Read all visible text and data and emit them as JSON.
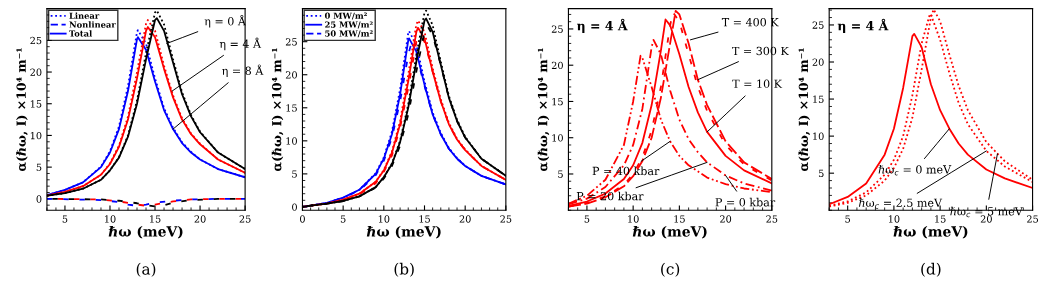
{
  "chart_data": [
    {
      "type": "line",
      "title": "(a)",
      "xlabel": "ℏω (meV)",
      "ylabel": "α(ℏω, I) ×10⁴ m⁻¹",
      "xlim": [
        3,
        25
      ],
      "ylim": [
        -1.8,
        30
      ],
      "xticks": [
        5,
        10,
        15,
        20,
        25
      ],
      "yticks": [
        0,
        5,
        10,
        15,
        20,
        25
      ],
      "grid": false,
      "legend": "top left",
      "series": [
        {
          "name": "Linear",
          "color": "#0000ff",
          "line_style": "dotted",
          "x": [
            3,
            5,
            7,
            9,
            10,
            11,
            12,
            13,
            13.1,
            14,
            15,
            16,
            17,
            18,
            19,
            20,
            22,
            25
          ],
          "values": [
            0.6,
            1.4,
            2.6,
            5.1,
            7.5,
            11.4,
            17.8,
            26.3,
            26.6,
            24.5,
            19,
            14.3,
            11.2,
            8.9,
            7.4,
            6.2,
            4.7,
            3.4
          ]
        },
        {
          "name": "Nonlinear",
          "color": "#0000ff",
          "line_style": "dashed",
          "x": [
            3,
            9,
            11,
            12,
            13,
            14,
            15,
            17,
            19,
            22,
            25
          ],
          "values": [
            0,
            -0.2,
            -0.5,
            -0.9,
            -1.1,
            -0.9,
            -0.6,
            -0.3,
            -0.1,
            0,
            0
          ]
        },
        {
          "name": "Total",
          "color": "#0000ff",
          "line_style": "solid",
          "x": [
            3,
            5,
            7,
            9,
            10,
            11,
            12,
            13,
            13.1,
            14,
            15,
            16,
            17,
            18,
            19,
            20,
            22,
            25
          ],
          "values": [
            0.6,
            1.4,
            2.6,
            5,
            7.3,
            11,
            17,
            25.2,
            25.5,
            23.5,
            18.5,
            14,
            11,
            8.8,
            7.3,
            6.2,
            4.7,
            3.4
          ]
        },
        {
          "color": "#ff0000",
          "line_style": "dotted",
          "x": [
            3,
            5,
            7,
            9,
            10,
            11,
            12,
            13,
            14,
            14.2,
            15,
            16,
            17,
            18,
            19,
            20,
            22,
            25
          ],
          "values": [
            0.5,
            1.1,
            2,
            3.8,
            5.6,
            8.4,
            13,
            20,
            27.6,
            28.2,
            26.5,
            21,
            16.3,
            12.7,
            10.3,
            8.7,
            6.2,
            4.1
          ]
        },
        {
          "color": "#ff0000",
          "line_style": "dashed",
          "x": [
            3,
            9,
            11,
            13,
            14,
            15,
            17,
            19,
            22,
            25
          ],
          "values": [
            0,
            -0.1,
            -0.4,
            -0.9,
            -1.1,
            -0.9,
            -0.4,
            -0.1,
            0,
            0
          ]
        },
        {
          "color": "#ff0000",
          "line_style": "solid",
          "x": [
            3,
            5,
            7,
            9,
            10,
            11,
            12,
            13,
            14,
            14.2,
            15,
            16,
            17,
            18,
            19,
            20,
            22,
            25
          ],
          "values": [
            0.5,
            1.1,
            2,
            3.8,
            5.5,
            8.2,
            12.5,
            19,
            26.5,
            27.1,
            25.5,
            20.5,
            16,
            12.5,
            10.2,
            8.6,
            6.2,
            4.1
          ]
        },
        {
          "color": "#000000",
          "line_style": "dotted",
          "x": [
            3,
            5,
            7,
            9,
            10,
            11,
            12,
            13,
            14,
            15,
            15.2,
            16,
            17,
            18,
            19,
            20,
            22,
            25
          ],
          "values": [
            0.5,
            0.9,
            1.6,
            3,
            4.5,
            6.6,
            10,
            15.5,
            23,
            29.4,
            29.7,
            27.5,
            22,
            16.8,
            13.2,
            10.6,
            7.3,
            4.7
          ]
        },
        {
          "color": "#000000",
          "line_style": "dashed",
          "x": [
            3,
            9,
            11,
            13,
            14,
            15,
            16,
            17,
            19,
            22,
            25
          ],
          "values": [
            0,
            -0.1,
            -0.3,
            -0.7,
            -1,
            -1.2,
            -1,
            -0.6,
            -0.2,
            0,
            0
          ]
        },
        {
          "color": "#000000",
          "line_style": "solid",
          "x": [
            3,
            5,
            7,
            9,
            10,
            11,
            12,
            13,
            14,
            15,
            15.2,
            16,
            17,
            18,
            19,
            20,
            22,
            25
          ],
          "values": [
            0.5,
            0.9,
            1.6,
            3,
            4.5,
            6.5,
            9.8,
            15,
            22,
            28.2,
            28.5,
            26.5,
            21.5,
            16.5,
            13,
            10.5,
            7.3,
            4.7
          ]
        }
      ],
      "annotations": [
        {
          "text": "η = 0 Å",
          "x": 16.3,
          "y": 24.5
        },
        {
          "text": "η = 4 Å",
          "x": 16.9,
          "y": 17
        },
        {
          "text": "η = 8 Å",
          "x": 17,
          "y": 11
        }
      ]
    },
    {
      "type": "line",
      "title": "(b)",
      "xlabel": "ℏω (meV)",
      "ylabel": "α(ℏω, I) ×10⁴ m⁻¹",
      "xlim": [
        0,
        25
      ],
      "ylim": [
        -0.5,
        30
      ],
      "xticks": [
        0,
        5,
        10,
        15,
        20,
        25
      ],
      "yticks": [
        0,
        5,
        10,
        15,
        20,
        25
      ],
      "grid": false,
      "legend": "top left",
      "series": [
        {
          "name": "0 MW/m²",
          "color": "#0000ff",
          "line_style": "dotted",
          "x": [
            0,
            1,
            3,
            5,
            7,
            9,
            10,
            11,
            12,
            13,
            13.1,
            14,
            15,
            16,
            17,
            18,
            19,
            20,
            22,
            25
          ],
          "values": [
            0,
            0.2,
            0.6,
            1.4,
            2.6,
            5.1,
            7.5,
            11.4,
            17.8,
            26.3,
            26.6,
            24.5,
            19,
            14.3,
            11.2,
            8.9,
            7.4,
            6.2,
            4.7,
            3.4
          ]
        },
        {
          "name": "25 MW/m²",
          "color": "#0000ff",
          "line_style": "solid",
          "x": [
            0,
            1,
            3,
            5,
            7,
            9,
            10,
            11,
            12,
            13,
            13.1,
            14,
            15,
            16,
            17,
            18,
            19,
            20,
            22,
            25
          ],
          "values": [
            0,
            0.2,
            0.6,
            1.4,
            2.6,
            5,
            7.3,
            11,
            17,
            25.2,
            25.5,
            23.5,
            18.5,
            14,
            11,
            8.8,
            7.3,
            6.2,
            4.7,
            3.4
          ]
        },
        {
          "name": "50 MW/m²",
          "color": "#0000ff",
          "line_style": "dashed",
          "x": [
            0,
            1,
            3,
            5,
            7,
            9,
            10,
            11,
            12,
            13,
            13.3,
            14,
            15,
            16,
            17,
            18,
            19,
            20,
            22,
            25
          ],
          "values": [
            0,
            0.2,
            0.6,
            1.4,
            2.5,
            4.8,
            7,
            10.5,
            16,
            23,
            24.4,
            23,
            18.3,
            14,
            11,
            8.8,
            7.3,
            6.2,
            4.7,
            3.4
          ]
        },
        {
          "color": "#ff0000",
          "line_style": "dotted",
          "x": [
            0,
            1,
            3,
            5,
            7,
            9,
            10,
            11,
            12,
            13,
            14,
            14.2,
            15,
            16,
            17,
            18,
            19,
            20,
            22,
            25
          ],
          "values": [
            0,
            0.2,
            0.5,
            1.1,
            2,
            3.8,
            5.6,
            8.4,
            13,
            20,
            27.6,
            28.2,
            26.5,
            21,
            16.3,
            12.7,
            10.3,
            8.7,
            6.2,
            4.1
          ]
        },
        {
          "color": "#ff0000",
          "line_style": "solid",
          "x": [
            0,
            1,
            3,
            5,
            7,
            9,
            10,
            11,
            12,
            13,
            14,
            14.2,
            15,
            16,
            17,
            18,
            19,
            20,
            22,
            25
          ],
          "values": [
            0,
            0.2,
            0.5,
            1.1,
            2,
            3.8,
            5.5,
            8.2,
            12.5,
            19,
            26.5,
            27.1,
            25.5,
            20.5,
            16,
            12.5,
            10.2,
            8.6,
            6.2,
            4.1
          ]
        },
        {
          "color": "#ff0000",
          "line_style": "dashed",
          "x": [
            0,
            1,
            3,
            5,
            7,
            9,
            10,
            11,
            12,
            13,
            14,
            14.4,
            15,
            16,
            17,
            18,
            19,
            20,
            22,
            25
          ],
          "values": [
            0,
            0.2,
            0.5,
            1.1,
            1.9,
            3.6,
            5.3,
            7.8,
            12,
            18,
            25,
            26,
            25,
            20.5,
            16,
            12.5,
            10.2,
            8.6,
            6.2,
            4.1
          ]
        },
        {
          "color": "#000000",
          "line_style": "dotted",
          "x": [
            0,
            1,
            3,
            5,
            7,
            9,
            10,
            11,
            12,
            13,
            14,
            15,
            15.2,
            16,
            17,
            18,
            19,
            20,
            22,
            25
          ],
          "values": [
            0,
            0.2,
            0.5,
            0.9,
            1.6,
            3,
            4.5,
            6.6,
            10,
            15.5,
            23,
            29.4,
            29.7,
            27.5,
            22,
            16.8,
            13.2,
            10.6,
            7.3,
            4.7
          ]
        },
        {
          "color": "#000000",
          "line_style": "solid",
          "x": [
            0,
            1,
            3,
            5,
            7,
            9,
            10,
            11,
            12,
            13,
            14,
            15,
            15.2,
            16,
            17,
            18,
            19,
            20,
            22,
            25
          ],
          "values": [
            0,
            0.2,
            0.5,
            0.9,
            1.6,
            3,
            4.5,
            6.5,
            9.8,
            15,
            22,
            28.2,
            28.5,
            26.5,
            21.5,
            16.5,
            13,
            10.5,
            7.3,
            4.7
          ]
        },
        {
          "color": "#000000",
          "line_style": "dashed",
          "x": [
            0,
            1,
            3,
            5,
            7,
            9,
            10,
            11,
            12,
            13,
            14,
            15,
            15.4,
            16,
            17,
            18,
            19,
            20,
            22,
            25
          ],
          "values": [
            0,
            0.2,
            0.5,
            0.9,
            1.6,
            2.9,
            4.3,
            6.2,
            9.3,
            14,
            20.5,
            26.5,
            27.3,
            26,
            21.5,
            16.5,
            13,
            10.5,
            7.3,
            4.7
          ]
        }
      ]
    },
    {
      "type": "line",
      "title": "(c)",
      "xlabel": "ℏω (meV)",
      "ylabel": "α(ℏω, I) ×10⁴ m⁻¹",
      "xlim": [
        3,
        25
      ],
      "ylim": [
        0,
        27.8
      ],
      "xticks": [
        5,
        10,
        15,
        20,
        25
      ],
      "yticks": [
        5,
        10,
        15,
        20,
        25
      ],
      "grid": false,
      "series": [
        {
          "color": "#ff0000",
          "line_style": "solid",
          "x": [
            3,
            5,
            7,
            9,
            10,
            11,
            12,
            13,
            13.5,
            14,
            15,
            16,
            17,
            18,
            20,
            22,
            25
          ],
          "values": [
            0.6,
            1.2,
            2.3,
            4.3,
            6.2,
            9.3,
            14.5,
            22,
            26.3,
            25.5,
            21.5,
            17,
            13.5,
            10.8,
            7.5,
            5.5,
            3.7
          ]
        },
        {
          "color": "#ff0000",
          "line_style": "dashed",
          "x": [
            3,
            5,
            7,
            9,
            10,
            11,
            12,
            13,
            14,
            14.3,
            15,
            16,
            17,
            18,
            20,
            22,
            25
          ],
          "values": [
            0.5,
            1,
            1.9,
            3.5,
            5,
            7.3,
            11,
            17,
            25.5,
            27.3,
            26,
            21.5,
            17,
            13.7,
            9,
            6.3,
            4.1
          ]
        },
        {
          "color": "#ff0000",
          "line_style": "longdashed",
          "x": [
            3,
            5,
            7,
            9,
            10,
            11,
            12,
            13,
            14,
            14.6,
            15,
            16,
            17,
            18,
            20,
            22,
            25
          ],
          "values": [
            0.5,
            0.9,
            1.8,
            3.3,
            4.7,
            6.8,
            10,
            15.5,
            23,
            27.5,
            27,
            23,
            18,
            14.5,
            9.5,
            6.6,
            4.3
          ]
        },
        {
          "color": "#ff0000",
          "line_style": "dashdot",
          "x": [
            3,
            5,
            7,
            9,
            10,
            11,
            12,
            12.2,
            13,
            14,
            15,
            16,
            17,
            18,
            20,
            22,
            25
          ],
          "values": [
            0.8,
            1.6,
            3.2,
            6.2,
            9,
            14,
            22.5,
            23.5,
            21.5,
            16.5,
            12.5,
            9.8,
            8,
            6.6,
            4.8,
            3.7,
            2.7
          ]
        },
        {
          "color": "#ff0000",
          "line_style": "dashdotdot",
          "x": [
            3,
            5,
            7,
            9,
            10,
            10.8,
            11,
            12,
            13,
            14,
            15,
            16,
            18,
            20,
            22,
            25
          ],
          "values": [
            0.9,
            2,
            4.2,
            9,
            15,
            21.3,
            21,
            17,
            12.5,
            9.5,
            7.5,
            6.2,
            4.5,
            3.6,
            3,
            2.5
          ]
        }
      ],
      "annotations": [
        "η = 4 Å",
        {
          "text": "T = 400 K",
          "x": 16.2,
          "y": 23.5
        },
        {
          "text": "T = 300 K",
          "x": 17,
          "y": 18
        },
        {
          "text": "T = 10 K",
          "x": 18,
          "y": 10.8
        },
        {
          "text": "P = 40 kbar",
          "x": 14,
          "y": 9.5
        },
        {
          "text": "P = 20 kbar",
          "x": 18,
          "y": 6.6
        },
        {
          "text": "P = 0 kbar",
          "x": 20,
          "y": 4.8
        }
      ]
    },
    {
      "type": "line",
      "title": "(d)",
      "xlabel": "ℏω (meV)",
      "ylabel": "α(ℏω, I) ×10⁴ m⁻¹",
      "xlim": [
        3,
        25
      ],
      "ylim": [
        0,
        27.2
      ],
      "xticks": [
        5,
        10,
        15,
        20,
        25
      ],
      "yticks": [
        5,
        10,
        15,
        20,
        25
      ],
      "grid": false,
      "series": [
        {
          "color": "#ff0000",
          "line_style": "solid",
          "x": [
            3,
            5,
            7,
            9,
            10,
            11,
            12,
            12.2,
            13,
            14,
            15,
            16,
            17,
            18,
            20,
            22,
            25
          ],
          "values": [
            0.8,
            1.8,
            3.6,
            7.5,
            11,
            16.5,
            23.5,
            23.8,
            22,
            17,
            13.5,
            11,
            9,
            7.5,
            5.5,
            4.3,
            3
          ]
        },
        {
          "color": "#ff0000",
          "line_style": "dotted",
          "x": [
            3,
            5,
            7,
            9,
            10,
            11,
            12,
            13,
            13.9,
            14,
            15,
            16,
            17,
            18,
            20,
            22,
            25
          ],
          "values": [
            0.6,
            1.2,
            2.4,
            4.8,
            6.8,
            10,
            15.5,
            22.5,
            26.5,
            26.4,
            23,
            18.5,
            14.5,
            11.6,
            8,
            5.9,
            3.8
          ]
        },
        {
          "color": "#ff0000",
          "line_style": "dotted",
          "x": [
            3,
            5,
            7,
            9,
            10,
            11,
            12,
            13,
            14,
            14.3,
            15,
            16,
            17,
            18,
            20,
            22,
            25
          ],
          "values": [
            0.5,
            1,
            2,
            4,
            5.7,
            8.3,
            12.5,
            19,
            26,
            27.1,
            25.5,
            21,
            16.8,
            13.5,
            9.2,
            6.6,
            4.1
          ]
        }
      ],
      "annotations": [
        "η = 4 Å",
        {
          "text": "ℏω$_{c}$ = 0 meV",
          "x": 16,
          "y": 11
        },
        {
          "text": "ℏω$_{c}$ = 2.5 meV",
          "x": 20,
          "y": 8
        },
        {
          "text": "ℏω$_{c}$ = 5 meV",
          "x": 21.2,
          "y": 7.6
        }
      ]
    }
  ]
}
